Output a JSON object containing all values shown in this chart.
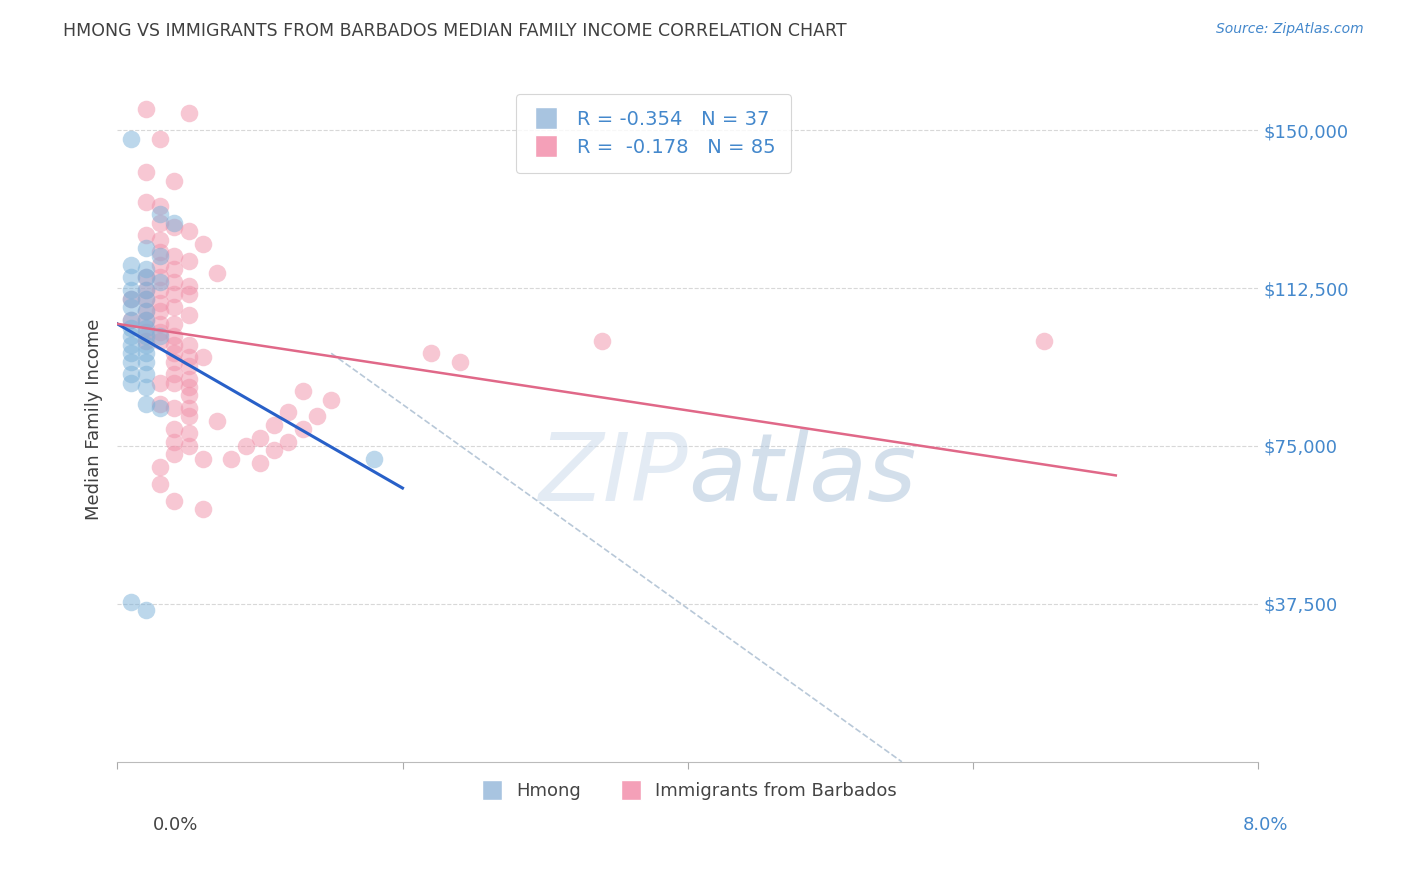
{
  "title": "HMONG VS IMMIGRANTS FROM BARBADOS MEDIAN FAMILY INCOME CORRELATION CHART",
  "source": "Source: ZipAtlas.com",
  "ylabel": "Median Family Income",
  "y_ticks": [
    37500,
    75000,
    112500,
    150000
  ],
  "y_tick_labels": [
    "$37,500",
    "$75,000",
    "$112,500",
    "$150,000"
  ],
  "xlim": [
    0.0,
    0.08
  ],
  "ylim": [
    0,
    162500
  ],
  "watermark": "ZIPatlas",
  "hmong_color": "#7ab0d8",
  "barbados_color": "#f090a8",
  "hmong_line_color": "#2860c8",
  "barbados_line_color": "#e06888",
  "dashed_line_color": "#b8c8d8",
  "background_color": "#ffffff",
  "title_color": "#404040",
  "ylabel_color": "#404040",
  "tick_color": "#4488cc",
  "grid_color": "#d8d8d8",
  "hmong_scatter": [
    [
      0.001,
      148000
    ],
    [
      0.003,
      130000
    ],
    [
      0.004,
      128000
    ],
    [
      0.002,
      122000
    ],
    [
      0.003,
      120000
    ],
    [
      0.001,
      118000
    ],
    [
      0.002,
      117000
    ],
    [
      0.001,
      115000
    ],
    [
      0.002,
      115000
    ],
    [
      0.003,
      114000
    ],
    [
      0.001,
      112000
    ],
    [
      0.002,
      112000
    ],
    [
      0.001,
      110000
    ],
    [
      0.002,
      110000
    ],
    [
      0.001,
      108000
    ],
    [
      0.002,
      107000
    ],
    [
      0.001,
      105000
    ],
    [
      0.002,
      105000
    ],
    [
      0.001,
      103000
    ],
    [
      0.002,
      103000
    ],
    [
      0.001,
      101000
    ],
    [
      0.002,
      101000
    ],
    [
      0.003,
      101000
    ],
    [
      0.001,
      99000
    ],
    [
      0.002,
      99000
    ],
    [
      0.001,
      97000
    ],
    [
      0.002,
      97000
    ],
    [
      0.001,
      95000
    ],
    [
      0.002,
      95000
    ],
    [
      0.001,
      92000
    ],
    [
      0.002,
      92000
    ],
    [
      0.001,
      90000
    ],
    [
      0.002,
      89000
    ],
    [
      0.002,
      85000
    ],
    [
      0.003,
      84000
    ],
    [
      0.018,
      72000
    ],
    [
      0.001,
      38000
    ],
    [
      0.002,
      36000
    ]
  ],
  "barbados_scatter": [
    [
      0.002,
      155000
    ],
    [
      0.005,
      154000
    ],
    [
      0.003,
      148000
    ],
    [
      0.002,
      140000
    ],
    [
      0.004,
      138000
    ],
    [
      0.002,
      133000
    ],
    [
      0.003,
      132000
    ],
    [
      0.003,
      128000
    ],
    [
      0.004,
      127000
    ],
    [
      0.005,
      126000
    ],
    [
      0.002,
      125000
    ],
    [
      0.003,
      124000
    ],
    [
      0.006,
      123000
    ],
    [
      0.003,
      121000
    ],
    [
      0.004,
      120000
    ],
    [
      0.005,
      119000
    ],
    [
      0.003,
      118000
    ],
    [
      0.004,
      117000
    ],
    [
      0.007,
      116000
    ],
    [
      0.002,
      115000
    ],
    [
      0.003,
      115000
    ],
    [
      0.004,
      114000
    ],
    [
      0.005,
      113000
    ],
    [
      0.002,
      112000
    ],
    [
      0.003,
      112000
    ],
    [
      0.004,
      111000
    ],
    [
      0.005,
      111000
    ],
    [
      0.001,
      110000
    ],
    [
      0.002,
      110000
    ],
    [
      0.003,
      109000
    ],
    [
      0.004,
      108000
    ],
    [
      0.002,
      107000
    ],
    [
      0.003,
      107000
    ],
    [
      0.005,
      106000
    ],
    [
      0.001,
      105000
    ],
    [
      0.002,
      105000
    ],
    [
      0.003,
      104000
    ],
    [
      0.004,
      104000
    ],
    [
      0.002,
      102000
    ],
    [
      0.003,
      102000
    ],
    [
      0.004,
      101000
    ],
    [
      0.002,
      100000
    ],
    [
      0.003,
      100000
    ],
    [
      0.004,
      99000
    ],
    [
      0.005,
      99000
    ],
    [
      0.004,
      97000
    ],
    [
      0.005,
      96000
    ],
    [
      0.006,
      96000
    ],
    [
      0.004,
      95000
    ],
    [
      0.005,
      94000
    ],
    [
      0.004,
      92000
    ],
    [
      0.005,
      91000
    ],
    [
      0.003,
      90000
    ],
    [
      0.004,
      90000
    ],
    [
      0.005,
      89000
    ],
    [
      0.005,
      87000
    ],
    [
      0.003,
      85000
    ],
    [
      0.004,
      84000
    ],
    [
      0.005,
      84000
    ],
    [
      0.005,
      82000
    ],
    [
      0.007,
      81000
    ],
    [
      0.004,
      79000
    ],
    [
      0.005,
      78000
    ],
    [
      0.004,
      76000
    ],
    [
      0.005,
      75000
    ],
    [
      0.004,
      73000
    ],
    [
      0.006,
      72000
    ],
    [
      0.003,
      70000
    ],
    [
      0.003,
      66000
    ],
    [
      0.004,
      62000
    ],
    [
      0.006,
      60000
    ],
    [
      0.034,
      100000
    ],
    [
      0.022,
      97000
    ],
    [
      0.024,
      95000
    ],
    [
      0.013,
      88000
    ],
    [
      0.015,
      86000
    ],
    [
      0.012,
      83000
    ],
    [
      0.014,
      82000
    ],
    [
      0.011,
      80000
    ],
    [
      0.013,
      79000
    ],
    [
      0.01,
      77000
    ],
    [
      0.012,
      76000
    ],
    [
      0.009,
      75000
    ],
    [
      0.011,
      74000
    ],
    [
      0.008,
      72000
    ],
    [
      0.01,
      71000
    ],
    [
      0.065,
      100000
    ]
  ],
  "hmong_line": {
    "x0": 0.0,
    "y0": 104000,
    "x1": 0.02,
    "y1": 65000
  },
  "barbados_line": {
    "x0": 0.0,
    "y0": 104000,
    "x1": 0.07,
    "y1": 68000
  },
  "dashed_line": {
    "x0": 0.015,
    "y0": 97000,
    "x1": 0.055,
    "y1": 0
  }
}
